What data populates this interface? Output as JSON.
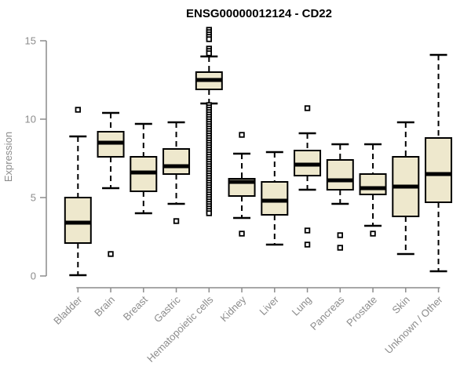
{
  "chart_data": {
    "type": "box",
    "title": "ENSG00000012124 - CD22",
    "xlabel": "",
    "ylabel": "Expression",
    "ylim": [
      0,
      15
    ],
    "yticks": [
      0,
      5,
      10,
      15
    ],
    "grid": false,
    "legend": "none",
    "colors": {
      "box_fill": "#EEE8CD",
      "box_stroke": "#000000",
      "median": "#000000",
      "whisker": "#000000",
      "outlier_stroke": "#000000",
      "outlier_fill": "#FFFFFF",
      "axis": "#8C8C8C",
      "tick_label": "#8C8C8C",
      "title": "#000000",
      "background": "#FFFFFF"
    },
    "categories": [
      "Bladder",
      "Brain",
      "Breast",
      "Gastric",
      "Hematopoietic cells",
      "Kidney",
      "Liver",
      "Lung",
      "Pancreas",
      "Prostate",
      "Skin",
      "Unknown / Other"
    ],
    "series": [
      {
        "label": "Bladder",
        "whisker_low": 0.05,
        "q1": 2.1,
        "median": 3.4,
        "q3": 5.0,
        "whisker_high": 8.9,
        "outliers": [
          10.6
        ],
        "outlier_bands": []
      },
      {
        "label": "Brain",
        "whisker_low": 5.6,
        "q1": 7.6,
        "median": 8.5,
        "q3": 9.2,
        "whisker_high": 10.4,
        "outliers": [
          1.4
        ],
        "outlier_bands": []
      },
      {
        "label": "Breast",
        "whisker_low": 4.0,
        "q1": 5.4,
        "median": 6.6,
        "q3": 7.6,
        "whisker_high": 9.7,
        "outliers": [],
        "outlier_bands": []
      },
      {
        "label": "Gastric",
        "whisker_low": 4.6,
        "q1": 6.5,
        "median": 7.0,
        "q3": 8.1,
        "whisker_high": 9.8,
        "outliers": [
          3.5
        ],
        "outlier_bands": []
      },
      {
        "label": "Hematopoietic cells",
        "whisker_low": 11.0,
        "q1": 11.9,
        "median": 12.5,
        "q3": 13.0,
        "whisker_high": 14.0,
        "outliers": [],
        "outlier_bands": [
          [
            4.0,
            10.9
          ],
          [
            14.2,
            14.5
          ],
          [
            15.0,
            15.7
          ]
        ]
      },
      {
        "label": "Kidney",
        "whisker_low": 3.7,
        "q1": 5.1,
        "median": 6.0,
        "q3": 6.2,
        "whisker_high": 7.8,
        "outliers": [
          9.0,
          2.7
        ],
        "outlier_bands": []
      },
      {
        "label": "Liver",
        "whisker_low": 2.0,
        "q1": 3.9,
        "median": 4.8,
        "q3": 6.0,
        "whisker_high": 7.9,
        "outliers": [],
        "outlier_bands": []
      },
      {
        "label": "Lung",
        "whisker_low": 5.5,
        "q1": 6.4,
        "median": 7.1,
        "q3": 8.0,
        "whisker_high": 9.1,
        "outliers": [
          10.7,
          2.9,
          2.0
        ],
        "outlier_bands": []
      },
      {
        "label": "Pancreas",
        "whisker_low": 4.6,
        "q1": 5.5,
        "median": 6.1,
        "q3": 7.4,
        "whisker_high": 8.4,
        "outliers": [
          2.6,
          1.8
        ],
        "outlier_bands": []
      },
      {
        "label": "Prostate",
        "whisker_low": 3.2,
        "q1": 5.2,
        "median": 5.6,
        "q3": 6.5,
        "whisker_high": 8.4,
        "outliers": [
          2.7
        ],
        "outlier_bands": []
      },
      {
        "label": "Skin",
        "whisker_low": 1.4,
        "q1": 3.8,
        "median": 5.7,
        "q3": 7.6,
        "whisker_high": 9.8,
        "outliers": [],
        "outlier_bands": []
      },
      {
        "label": "Unknown / Other",
        "whisker_low": 0.3,
        "q1": 4.7,
        "median": 6.5,
        "q3": 8.8,
        "whisker_high": 14.1,
        "outliers": [],
        "outlier_bands": []
      }
    ]
  }
}
